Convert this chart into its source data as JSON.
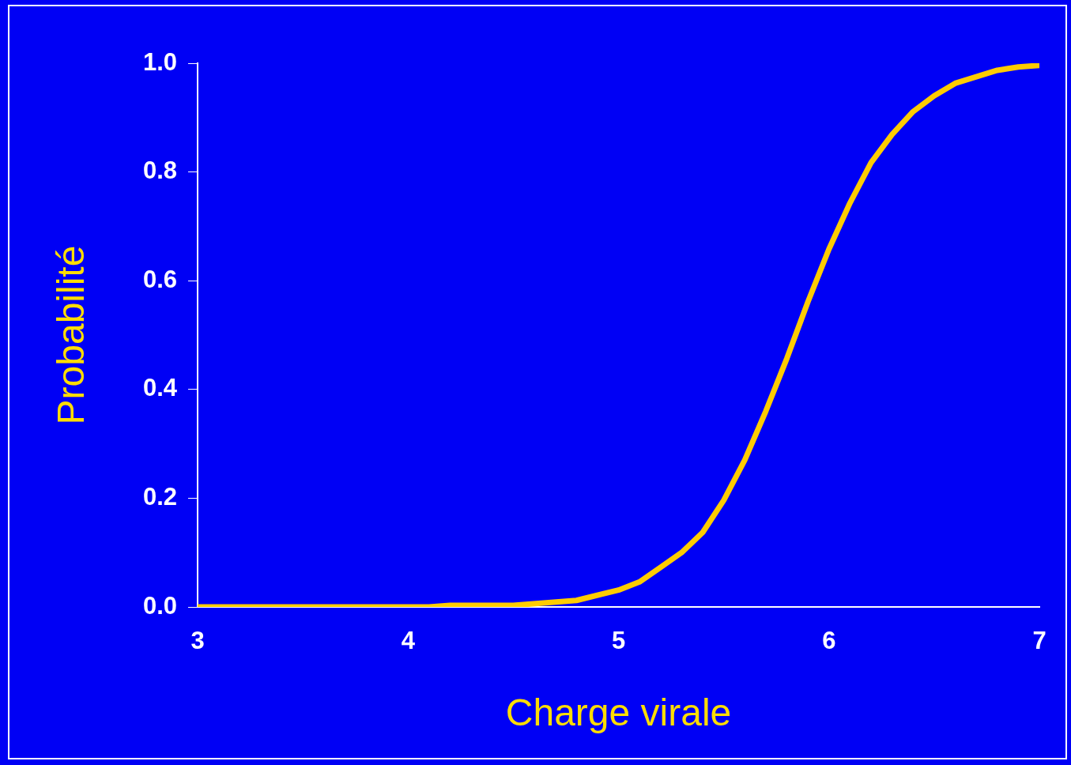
{
  "chart_data": {
    "type": "line",
    "xlabel": "Charge virale",
    "ylabel": "Probabilité",
    "x": [
      3,
      4,
      4.1,
      4.2,
      4.5,
      4.8,
      5.0,
      5.1,
      5.2,
      5.3,
      5.4,
      5.5,
      5.6,
      5.7,
      5.8,
      5.9,
      6.0,
      6.1,
      6.2,
      6.3,
      6.4,
      6.5,
      6.6,
      6.7,
      6.8,
      6.9,
      7.0
    ],
    "series": [
      {
        "color": "#ffcc00",
        "values": [
          0,
          0,
          0,
          0.003,
          0.003,
          0.012,
          0.031,
          0.046,
          0.073,
          0.1,
          0.137,
          0.196,
          0.27,
          0.36,
          0.457,
          0.561,
          0.658,
          0.743,
          0.817,
          0.869,
          0.911,
          0.94,
          0.963,
          0.975,
          0.987,
          0.993,
          0.996
        ]
      }
    ],
    "xlim": [
      3,
      7
    ],
    "xticks": [
      3,
      4,
      5,
      6,
      7
    ],
    "ylim": [
      0,
      1
    ],
    "yticks": [
      {
        "value": 0,
        "label": "0.0"
      },
      {
        "value": 0.2,
        "label": "0.2"
      },
      {
        "value": 0.4,
        "label": "0.4"
      },
      {
        "value": 0.6,
        "label": "0.6"
      },
      {
        "value": 0.8,
        "label": "0.8"
      },
      {
        "value": 1,
        "label": "1.0"
      }
    ],
    "grid": false,
    "legend": false,
    "marker": "none",
    "line_style": "solid"
  }
}
